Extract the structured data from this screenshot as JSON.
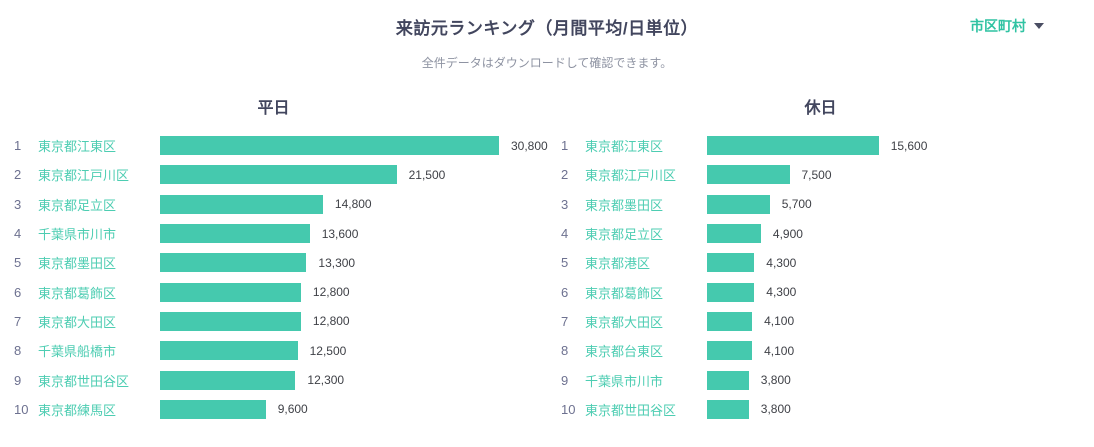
{
  "header": {
    "title": "来訪元ランキング（月間平均/日単位）",
    "subtitle": "全件データはダウンロードして確認できます。",
    "area_filter": {
      "label": "市区町村"
    }
  },
  "colors": {
    "bar": "#45c9ae",
    "place_label": "#4dcdb2",
    "accent": "#30c3a3",
    "rank": "#6d7190",
    "value": "#3f4147",
    "title": "#42465e",
    "subtitle": "#8e93a2"
  },
  "chart_data": [
    {
      "type": "bar",
      "orientation": "horizontal",
      "title": "平日",
      "categories": [
        "東京都江東区",
        "東京都江戸川区",
        "東京都足立区",
        "千葉県市川市",
        "東京都墨田区",
        "東京都葛飾区",
        "東京都大田区",
        "千葉県船橋市",
        "東京都世田谷区",
        "東京都練馬区"
      ],
      "values": [
        30800,
        21500,
        14800,
        13600,
        13300,
        12800,
        12800,
        12500,
        12300,
        9600
      ],
      "xlim": [
        0,
        30800
      ],
      "value_format": "comma",
      "grid": false,
      "shared_scale": true
    },
    {
      "type": "bar",
      "orientation": "horizontal",
      "title": "休日",
      "categories": [
        "東京都江東区",
        "東京都江戸川区",
        "東京都墨田区",
        "東京都足立区",
        "東京都港区",
        "東京都葛飾区",
        "東京都大田区",
        "東京都台東区",
        "千葉県市川市",
        "東京都世田谷区"
      ],
      "values": [
        15600,
        7500,
        5700,
        4900,
        4300,
        4300,
        4100,
        4100,
        3800,
        3800
      ],
      "xlim": [
        0,
        30800
      ],
      "value_format": "comma",
      "grid": false,
      "shared_scale": true
    }
  ]
}
